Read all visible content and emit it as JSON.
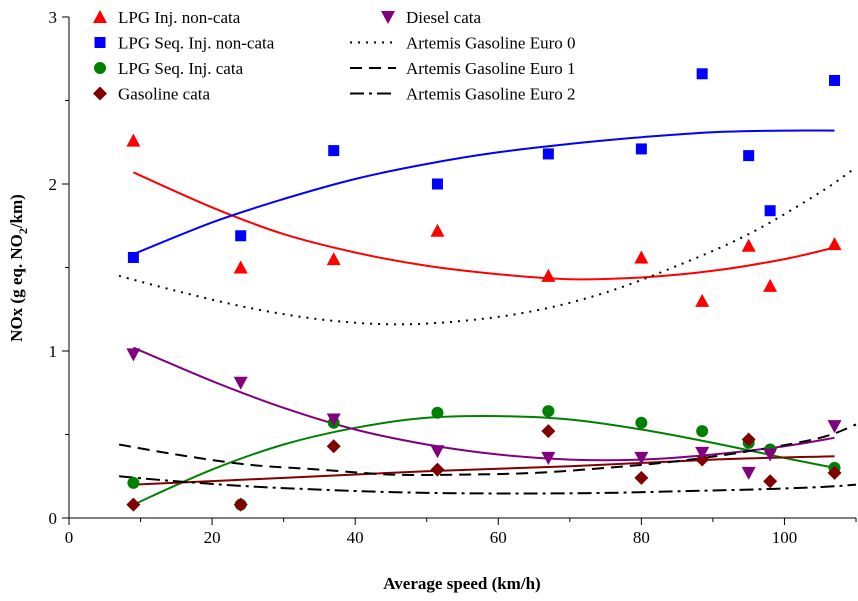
{
  "chart_data": {
    "type": "scatter",
    "xlabel": "Average speed (km/h)",
    "ylabel_parts": [
      "NOx (g eq. NO",
      "2",
      "/km)"
    ],
    "xlim": [
      0,
      110
    ],
    "ylim": [
      0,
      3
    ],
    "xticks": [
      0,
      20,
      40,
      60,
      80,
      100
    ],
    "yticks": [
      0,
      1,
      2,
      3
    ],
    "legend_position": "top-left (two columns inside plot)",
    "series": [
      {
        "name": "LPG Inj. non-cata",
        "marker": "triangle-up",
        "color": "#ff0000",
        "points": [
          [
            9,
            2.26
          ],
          [
            24,
            1.5
          ],
          [
            37,
            1.55
          ],
          [
            51.5,
            1.72
          ],
          [
            67,
            1.45
          ],
          [
            80,
            1.56
          ],
          [
            88.5,
            1.3
          ],
          [
            95,
            1.63
          ],
          [
            98,
            1.39
          ],
          [
            107,
            1.64
          ]
        ],
        "fit": [
          [
            9,
            2.07
          ],
          [
            20,
            1.86
          ],
          [
            30,
            1.7
          ],
          [
            40,
            1.59
          ],
          [
            50,
            1.51
          ],
          [
            60,
            1.46
          ],
          [
            70,
            1.43
          ],
          [
            80,
            1.44
          ],
          [
            90,
            1.48
          ],
          [
            100,
            1.55
          ],
          [
            107,
            1.62
          ]
        ]
      },
      {
        "name": "LPG Seq. Inj. non-cata",
        "marker": "square",
        "color": "#0000ff",
        "points": [
          [
            9,
            1.56
          ],
          [
            24,
            1.69
          ],
          [
            37,
            2.2
          ],
          [
            51.5,
            2.0
          ],
          [
            67,
            2.18
          ],
          [
            80,
            2.21
          ],
          [
            88.5,
            2.66
          ],
          [
            95,
            2.17
          ],
          [
            98,
            1.84
          ],
          [
            107,
            2.62
          ]
        ],
        "fit": [
          [
            9,
            1.58
          ],
          [
            20,
            1.77
          ],
          [
            30,
            1.91
          ],
          [
            40,
            2.03
          ],
          [
            50,
            2.12
          ],
          [
            60,
            2.19
          ],
          [
            70,
            2.24
          ],
          [
            80,
            2.28
          ],
          [
            90,
            2.31
          ],
          [
            100,
            2.32
          ],
          [
            107,
            2.32
          ]
        ]
      },
      {
        "name": "LPG Seq. Inj. cata",
        "marker": "circle",
        "color": "#008000",
        "points": [
          [
            9,
            0.21
          ],
          [
            24,
            0.08
          ],
          [
            37,
            0.57
          ],
          [
            51.5,
            0.63
          ],
          [
            67,
            0.64
          ],
          [
            80,
            0.57
          ],
          [
            88.5,
            0.52
          ],
          [
            95,
            0.45
          ],
          [
            98,
            0.41
          ],
          [
            107,
            0.3
          ]
        ],
        "fit": [
          [
            9,
            0.08
          ],
          [
            20,
            0.29
          ],
          [
            30,
            0.44
          ],
          [
            40,
            0.54
          ],
          [
            50,
            0.6
          ],
          [
            60,
            0.61
          ],
          [
            70,
            0.59
          ],
          [
            80,
            0.53
          ],
          [
            90,
            0.45
          ],
          [
            100,
            0.36
          ],
          [
            107,
            0.3
          ]
        ]
      },
      {
        "name": "Gasoline cata",
        "marker": "diamond",
        "color": "#800000",
        "points": [
          [
            9,
            0.08
          ],
          [
            24,
            0.08
          ],
          [
            37,
            0.43
          ],
          [
            51.5,
            0.29
          ],
          [
            67,
            0.52
          ],
          [
            80,
            0.24
          ],
          [
            88.5,
            0.35
          ],
          [
            95,
            0.47
          ],
          [
            98,
            0.22
          ],
          [
            107,
            0.27
          ]
        ],
        "fit": [
          [
            9,
            0.2
          ],
          [
            30,
            0.24
          ],
          [
            50,
            0.28
          ],
          [
            70,
            0.31
          ],
          [
            90,
            0.35
          ],
          [
            107,
            0.37
          ]
        ]
      },
      {
        "name": "Diesel cata",
        "marker": "triangle-down",
        "color": "#800080",
        "points": [
          [
            9,
            0.98
          ],
          [
            24,
            0.81
          ],
          [
            37,
            0.59
          ],
          [
            51.5,
            0.4
          ],
          [
            67,
            0.36
          ],
          [
            80,
            0.36
          ],
          [
            88.5,
            0.39
          ],
          [
            95,
            0.27
          ],
          [
            98,
            0.38
          ],
          [
            107,
            0.55
          ]
        ],
        "fit": [
          [
            9,
            1.02
          ],
          [
            20,
            0.82
          ],
          [
            30,
            0.66
          ],
          [
            40,
            0.53
          ],
          [
            50,
            0.44
          ],
          [
            60,
            0.38
          ],
          [
            70,
            0.35
          ],
          [
            80,
            0.35
          ],
          [
            90,
            0.38
          ],
          [
            100,
            0.43
          ],
          [
            107,
            0.48
          ]
        ]
      },
      {
        "name": "Artemis Gasoline Euro 0",
        "marker": "none",
        "color": "#000000",
        "dash": "dotted",
        "fit": [
          [
            7,
            1.45
          ],
          [
            15,
            1.36
          ],
          [
            25,
            1.26
          ],
          [
            35,
            1.19
          ],
          [
            45,
            1.16
          ],
          [
            55,
            1.18
          ],
          [
            65,
            1.24
          ],
          [
            75,
            1.35
          ],
          [
            85,
            1.51
          ],
          [
            95,
            1.7
          ],
          [
            105,
            1.95
          ],
          [
            110,
            2.1
          ]
        ]
      },
      {
        "name": "Artemis Gasoline Euro 1",
        "marker": "none",
        "color": "#000000",
        "dash": "dashed",
        "fit": [
          [
            7,
            0.44
          ],
          [
            15,
            0.38
          ],
          [
            25,
            0.32
          ],
          [
            35,
            0.29
          ],
          [
            45,
            0.26
          ],
          [
            55,
            0.26
          ],
          [
            65,
            0.27
          ],
          [
            75,
            0.3
          ],
          [
            85,
            0.34
          ],
          [
            95,
            0.4
          ],
          [
            105,
            0.48
          ],
          [
            110,
            0.56
          ]
        ]
      },
      {
        "name": "Artemis Gasoline Euro 2",
        "marker": "none",
        "color": "#000000",
        "dash": "dash-dot",
        "fit": [
          [
            7,
            0.25
          ],
          [
            15,
            0.22
          ],
          [
            25,
            0.19
          ],
          [
            35,
            0.17
          ],
          [
            45,
            0.155
          ],
          [
            55,
            0.148
          ],
          [
            65,
            0.147
          ],
          [
            75,
            0.15
          ],
          [
            85,
            0.16
          ],
          [
            95,
            0.17
          ],
          [
            105,
            0.185
          ],
          [
            110,
            0.2
          ]
        ]
      }
    ]
  }
}
